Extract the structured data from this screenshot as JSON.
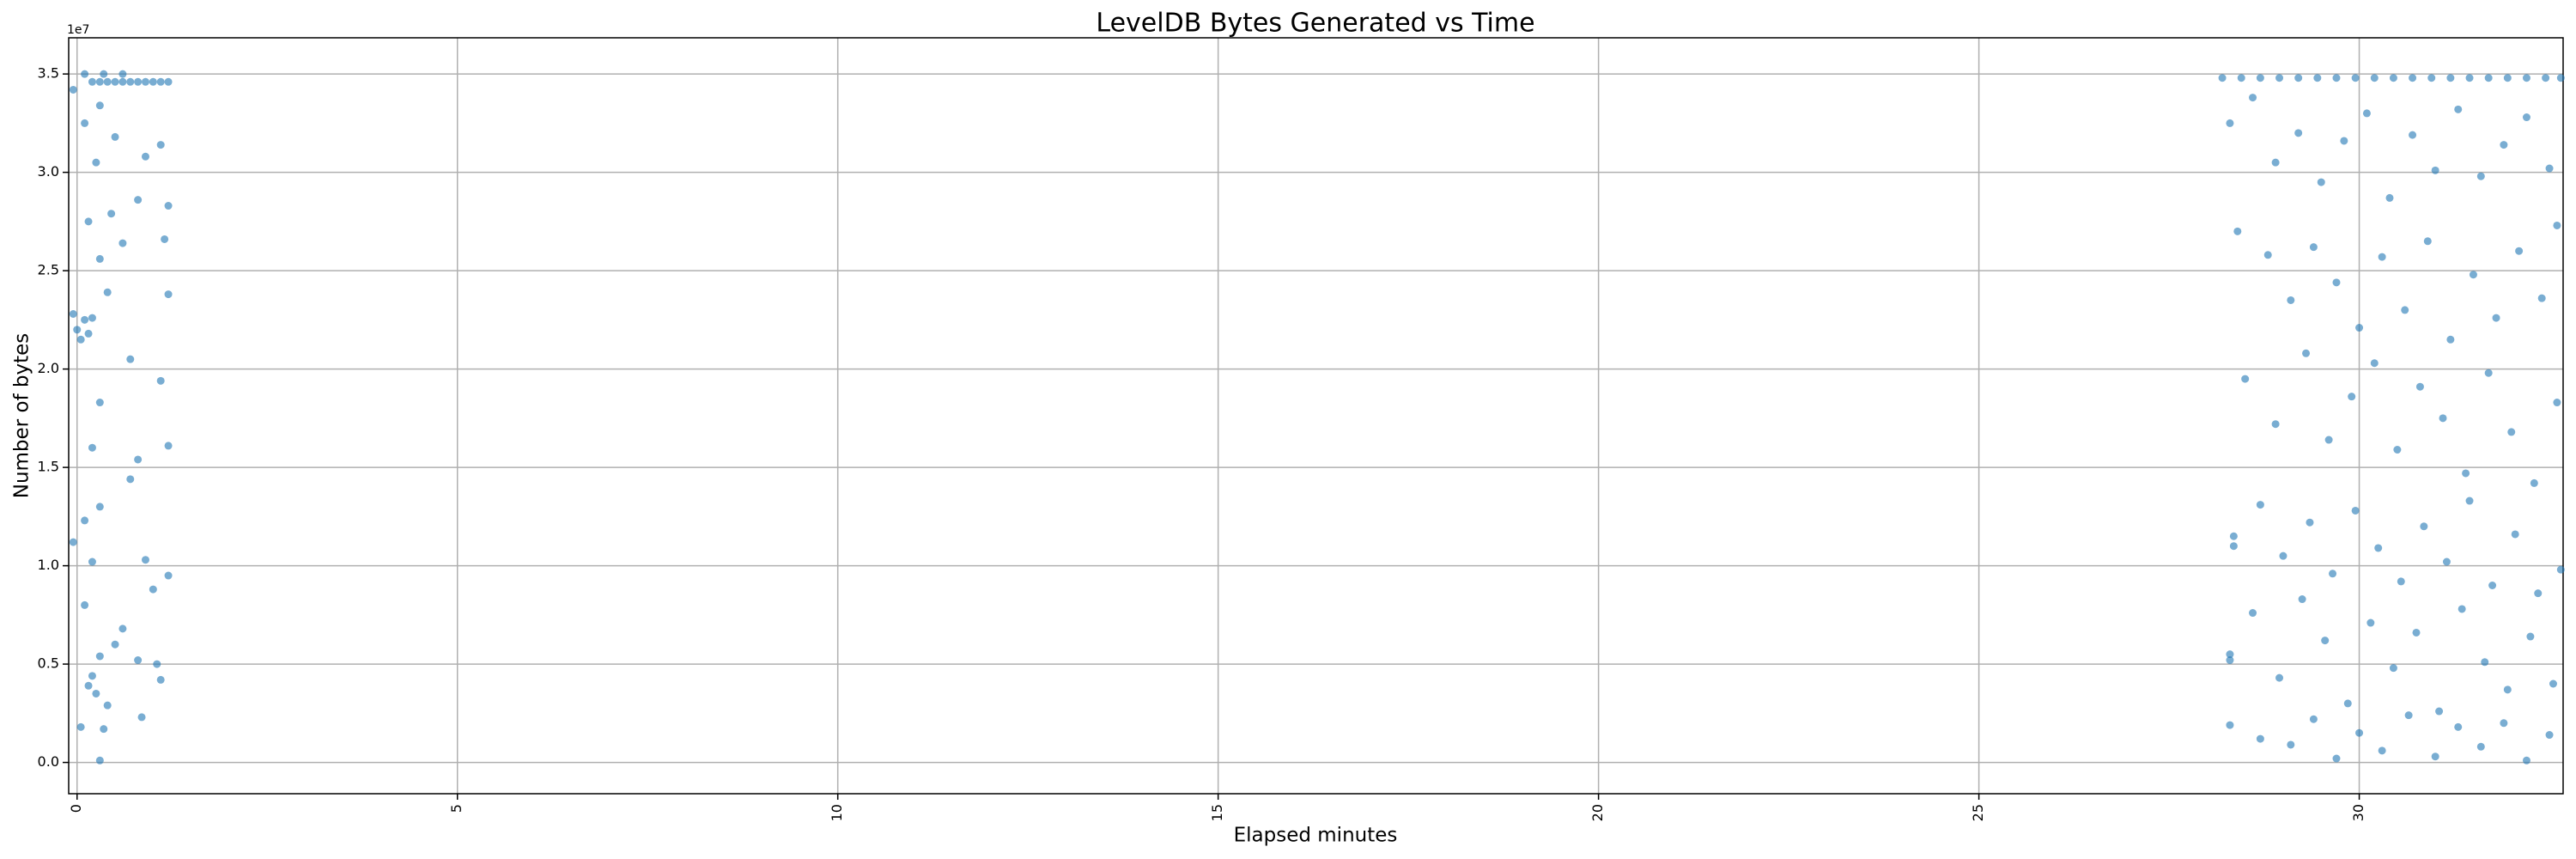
{
  "chart_data": {
    "type": "scatter",
    "title": "LevelDB Bytes Generated vs Time",
    "xlabel": "Elapsed minutes",
    "ylabel": "Number of bytes",
    "y_offset_label": "1e7",
    "color": "#1f77b4",
    "grid": true,
    "xlim": [
      -0.11,
      32.68
    ],
    "ylim": [
      -1590000,
      36840000
    ],
    "xticks": [
      0,
      5,
      10,
      15,
      20,
      25,
      30
    ],
    "yticks": [
      {
        "value": 0,
        "label": "0.0"
      },
      {
        "value": 5000000,
        "label": "0.5"
      },
      {
        "value": 10000000,
        "label": "1.0"
      },
      {
        "value": 15000000,
        "label": "1.5"
      },
      {
        "value": 20000000,
        "label": "2.0"
      },
      {
        "value": 25000000,
        "label": "2.5"
      },
      {
        "value": 30000000,
        "label": "3.0"
      },
      {
        "value": 35000000,
        "label": "3.5"
      }
    ],
    "x": [
      0.2,
      0.3,
      0.4,
      0.5,
      0.6,
      0.7,
      0.8,
      0.9,
      1.0,
      1.1,
      1.2,
      -0.05,
      0.1,
      0.35,
      0.6,
      -0.05,
      0,
      0.05,
      0.1,
      0.15,
      0.2,
      0.1,
      0.3,
      0.25,
      0.5,
      0.9,
      1.1,
      0.15,
      0.45,
      0.8,
      1.2,
      0.3,
      0.6,
      1.15,
      0.4,
      1.2,
      0.7,
      1.1,
      0.3,
      0.2,
      1.2,
      0.8,
      0.7,
      0.1,
      0.3,
      0.9,
      -0.05,
      0.2,
      1.2,
      0.1,
      0.6,
      1.0,
      0.3,
      0.8,
      0.15,
      0.25,
      1.1,
      0.05,
      0.35,
      0.85,
      0.5,
      0.3,
      0.2,
      1.05,
      0.4,
      28.2,
      28.45,
      28.7,
      28.95,
      29.2,
      29.45,
      29.7,
      29.95,
      30.2,
      30.45,
      30.7,
      30.95,
      31.2,
      31.45,
      31.7,
      31.95,
      32.2,
      32.45,
      32.65,
      28.3,
      28.6,
      28.9,
      29.2,
      29.5,
      29.8,
      30.1,
      30.4,
      30.7,
      31.0,
      31.3,
      31.6,
      31.9,
      32.2,
      32.5,
      28.4,
      28.8,
      29.1,
      29.4,
      29.7,
      30.0,
      30.3,
      30.6,
      30.9,
      31.2,
      31.5,
      31.8,
      32.1,
      32.4,
      32.6,
      28.5,
      28.9,
      29.3,
      29.6,
      29.9,
      30.2,
      30.5,
      30.8,
      31.1,
      31.4,
      31.7,
      32.0,
      32.3,
      32.6,
      28.35,
      28.35,
      28.7,
      29.0,
      29.35,
      29.65,
      29.95,
      30.25,
      30.55,
      30.85,
      31.15,
      31.45,
      31.75,
      32.05,
      32.35,
      32.65,
      28.3,
      28.3,
      28.6,
      28.95,
      29.25,
      29.55,
      29.85,
      30.15,
      30.45,
      30.75,
      31.05,
      31.35,
      31.65,
      31.95,
      32.25,
      32.55,
      28.3,
      28.7,
      29.1,
      29.4,
      29.7,
      30.0,
      30.3,
      30.65,
      31.0,
      31.3,
      31.6,
      31.9,
      32.2,
      32.5
    ],
    "values": [
      34600000,
      34600000,
      34600000,
      34600000,
      34600000,
      34600000,
      34600000,
      34600000,
      34600000,
      34600000,
      34600000,
      34200000,
      35000000,
      35000000,
      35000000,
      22800000,
      22000000,
      21500000,
      22500000,
      21800000,
      22600000,
      32500000,
      33400000,
      30500000,
      31800000,
      30800000,
      31400000,
      27500000,
      27900000,
      28600000,
      28300000,
      25600000,
      26400000,
      26600000,
      23900000,
      23800000,
      20500000,
      19400000,
      18300000,
      16000000,
      16100000,
      15400000,
      14400000,
      12300000,
      13000000,
      10300000,
      11200000,
      10200000,
      9500000,
      8000000,
      6800000,
      8800000,
      5400000,
      5200000,
      3900000,
      3500000,
      4200000,
      1800000,
      1700000,
      2300000,
      6000000,
      100000,
      4400000,
      5000000,
      2900000,
      34800000,
      34800000,
      34800000,
      34800000,
      34800000,
      34800000,
      34800000,
      34800000,
      34800000,
      34800000,
      34800000,
      34800000,
      34800000,
      34800000,
      34800000,
      34800000,
      34800000,
      34800000,
      34800000,
      32500000,
      33800000,
      30500000,
      32000000,
      29500000,
      31600000,
      33000000,
      28700000,
      31900000,
      30100000,
      33200000,
      29800000,
      31400000,
      32800000,
      30200000,
      27000000,
      25800000,
      23500000,
      26200000,
      24400000,
      22100000,
      25700000,
      23000000,
      26500000,
      21500000,
      24800000,
      22600000,
      26000000,
      23600000,
      27300000,
      19500000,
      17200000,
      20800000,
      16400000,
      18600000,
      20300000,
      15900000,
      19100000,
      17500000,
      14700000,
      19800000,
      16800000,
      14200000,
      18300000,
      11500000,
      11000000,
      13100000,
      10500000,
      12200000,
      9600000,
      12800000,
      10900000,
      9200000,
      12000000,
      10200000,
      13300000,
      9000000,
      11600000,
      8600000,
      9800000,
      5500000,
      5200000,
      7600000,
      4300000,
      8300000,
      6200000,
      3000000,
      7100000,
      4800000,
      6600000,
      2600000,
      7800000,
      5100000,
      3700000,
      6400000,
      4000000,
      1900000,
      1200000,
      900000,
      2200000,
      200000,
      1500000,
      600000,
      2400000,
      300000,
      1800000,
      800000,
      2000000,
      100000,
      1400000
    ]
  }
}
